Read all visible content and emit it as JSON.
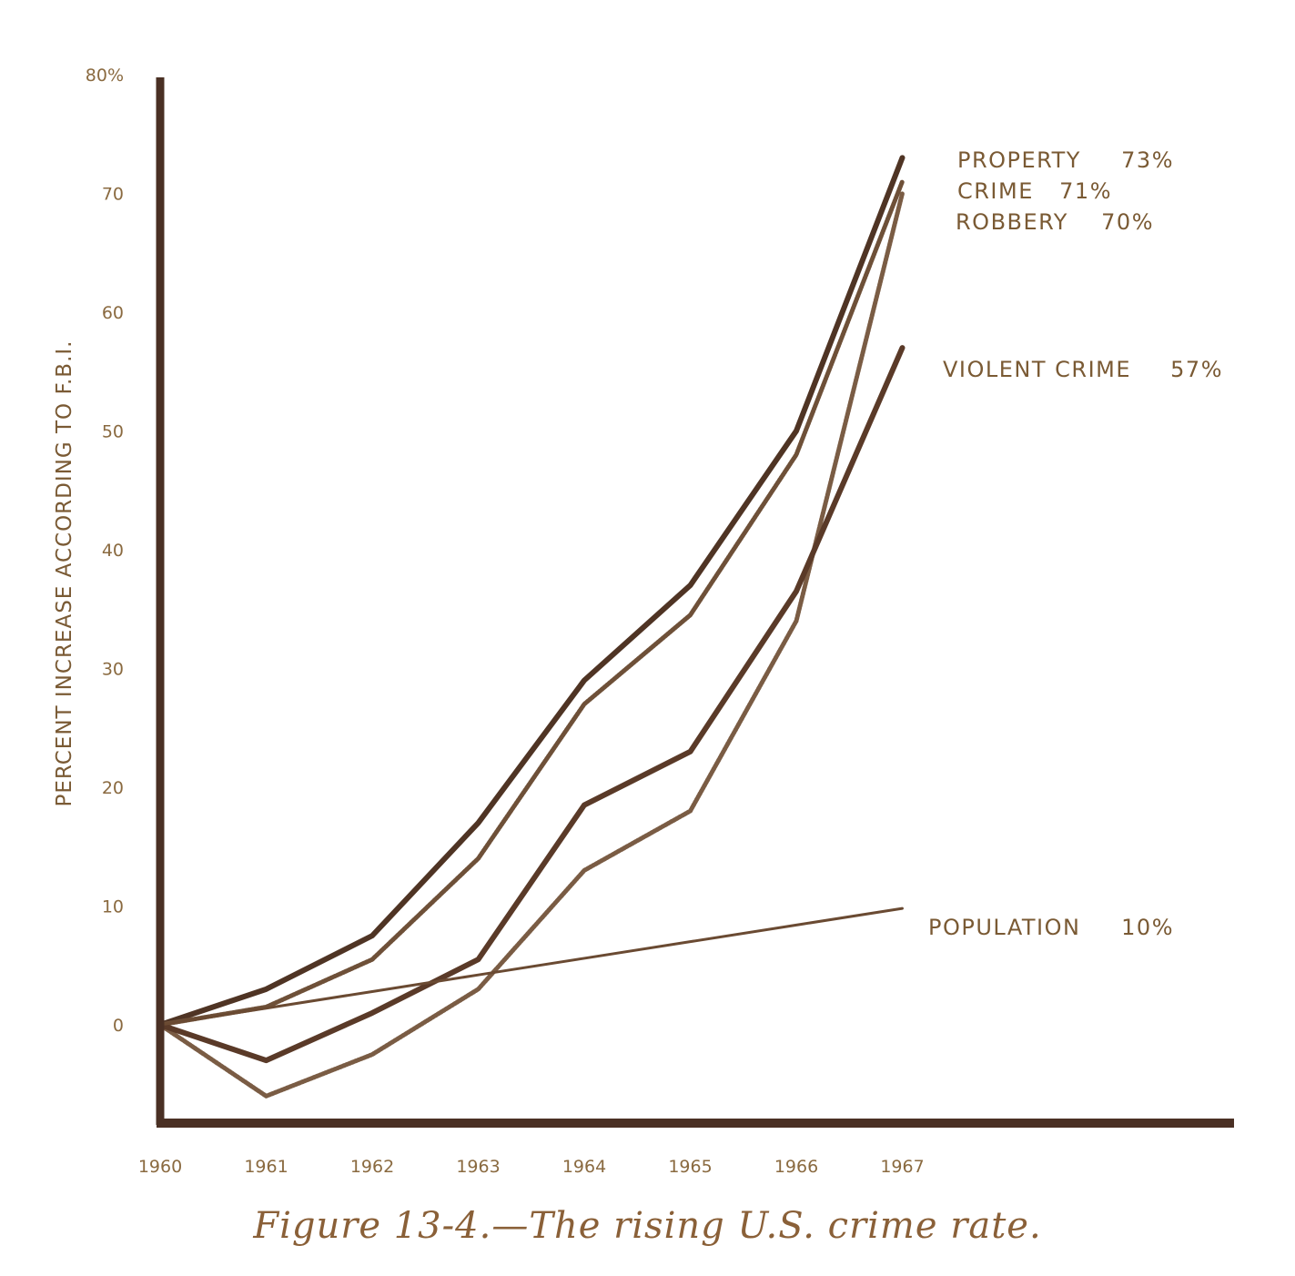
{
  "chart_data": {
    "type": "line",
    "ylabel": "PERCENT INCREASE ACCORDING TO F.B.I.",
    "x": [
      "1960",
      "1961",
      "1962",
      "1963",
      "1964",
      "1965",
      "1966",
      "1967"
    ],
    "y_ticks": [
      "80%",
      "70",
      "60",
      "50",
      "40",
      "30",
      "20",
      "10",
      "0"
    ],
    "ylim": [
      -8,
      80
    ],
    "grid": false,
    "series": [
      {
        "label": "PROPERTY",
        "end_label": "73%",
        "values": [
          0,
          3,
          7.5,
          17,
          29,
          37,
          50,
          73
        ],
        "color": "#4f3424",
        "style": "solid"
      },
      {
        "label": "CRIME",
        "end_label": "71%",
        "values": [
          0,
          1.5,
          5.5,
          14,
          27,
          34.5,
          48,
          71
        ],
        "color": "#6e5038",
        "style": "dotted"
      },
      {
        "label": "ROBBERY",
        "end_label": "70%",
        "values": [
          0,
          -6,
          -2.5,
          3,
          13,
          18,
          34,
          70
        ],
        "color": "#7a5c44",
        "style": "dotted"
      },
      {
        "label": "VIOLENT CRIME",
        "end_label": "57%",
        "values": [
          0,
          -3,
          1,
          5.5,
          18.5,
          23,
          36.5,
          57
        ],
        "color": "#5a3a28",
        "style": "solid"
      },
      {
        "label": "POPULATION",
        "end_label": "10%",
        "values": [
          0,
          1.4,
          2.8,
          4.2,
          5.6,
          7,
          8.4,
          9.8
        ],
        "color": "#6a4a32",
        "style": "thin"
      }
    ]
  },
  "caption": "Figure 13-4.—The rising U.S. crime rate."
}
